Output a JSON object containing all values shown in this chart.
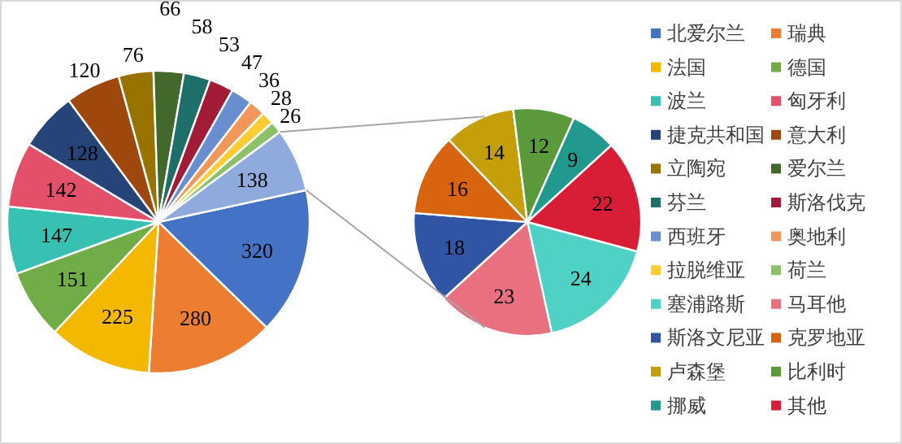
{
  "chart_data": [
    {
      "type": "pie",
      "categories": [
        "北爱尔兰",
        "瑞典",
        "法国",
        "德国",
        "波兰",
        "匈牙利",
        "捷克共和国",
        "意大利",
        "立陶宛",
        "爱尔兰",
        "芬兰",
        "斯洛伐克",
        "西班牙",
        "奥地利",
        "拉脱维亚",
        "荷兰",
        null
      ],
      "values": [
        320,
        280,
        225,
        151,
        147,
        142,
        128,
        120,
        76,
        66,
        58,
        53,
        47,
        36,
        28,
        26,
        138
      ],
      "colors": [
        "#4472c4",
        "#ed7d31",
        "#f5b800",
        "#70ad47",
        "#36c1b3",
        "#e4506a",
        "#264478",
        "#9e480e",
        "#997300",
        "#43682b",
        "#1e6f6a",
        "#a31c37",
        "#698ed0",
        "#f1975a",
        "#ffcd33",
        "#8cc168",
        "#8faadc"
      ],
      "data_labels": true,
      "legend": "right"
    },
    {
      "type": "pie",
      "categories": [
        "塞浦路斯",
        "马耳他",
        "斯洛文尼亚",
        "克罗地亚",
        "卢森堡",
        "比利时",
        "挪威",
        "其他"
      ],
      "values": [
        24,
        23,
        18,
        16,
        14,
        12,
        9,
        22
      ],
      "colors": [
        "#4fd1c5",
        "#e8707f",
        "#2f55a4",
        "#d9640f",
        "#c59f0a",
        "#5a9a3a",
        "#22998e",
        "#d81e36"
      ],
      "data_labels": true,
      "legend": "right"
    }
  ]
}
